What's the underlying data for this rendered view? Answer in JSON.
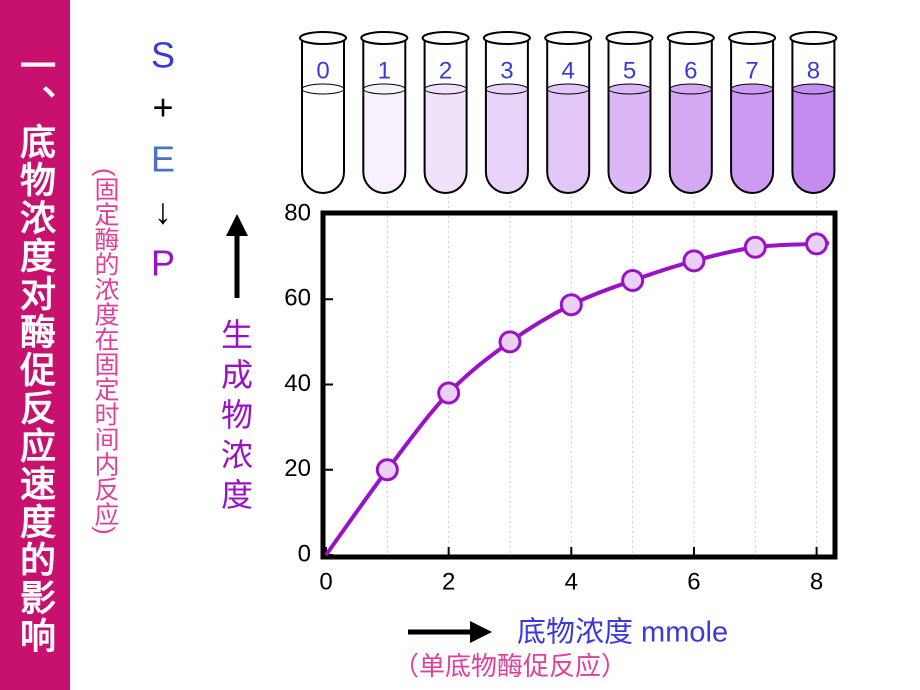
{
  "title": "一、底物浓度对酶促反应速度的影响",
  "note": "(固定酶的浓度在固定时间内反应)",
  "reaction": [
    "S",
    "+",
    "E",
    "↓",
    "P"
  ],
  "tubes": [
    "0",
    "1",
    "2",
    "3",
    "4",
    "5",
    "6",
    "7",
    "8"
  ],
  "chart_data": {
    "type": "line",
    "x": [
      0,
      1,
      2,
      3,
      4,
      5,
      6,
      7,
      8
    ],
    "values": [
      0,
      20,
      38,
      50,
      58.7,
      64.4,
      69,
      72.2,
      73
    ],
    "color": "#9a12c8",
    "marker_color": "#ead0f2",
    "xlabel": "底物浓度 mmole",
    "ylabel": "生成物浓度",
    "subtitle": "（单底物酶促反应）",
    "xlim": [
      0,
      8.3
    ],
    "ylim": [
      0,
      80
    ],
    "xticks": [
      0,
      2,
      4,
      6,
      8
    ],
    "yticks": [
      0,
      20,
      40,
      60,
      80
    ]
  }
}
